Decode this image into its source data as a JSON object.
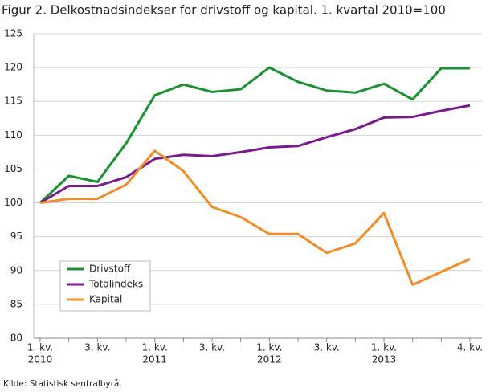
{
  "chart_data": {
    "type": "line",
    "title": "Figur 2. Delkostnadsindekser for drivstoff og kapital. 1. kvartal 2010=100",
    "source": "Kilde: Statistisk sentralbyrå.",
    "categories": [
      "1. kv.",
      null,
      "3. kv.",
      null,
      "1. kv.",
      null,
      "3. kv.",
      null,
      "1. kv.",
      null,
      "3. kv.",
      null,
      "1. kv.",
      null,
      null,
      "4. kv."
    ],
    "category_years": [
      "2010",
      null,
      null,
      null,
      "2011",
      null,
      null,
      null,
      "2012",
      null,
      null,
      null,
      "2013",
      null,
      null,
      null
    ],
    "series": [
      {
        "name": "Drivstoff",
        "color": "#1a9231",
        "values": [
          100,
          104.0,
          103.1,
          108.8,
          115.9,
          117.5,
          116.4,
          116.8,
          120.0,
          117.9,
          116.6,
          116.3,
          117.6,
          115.3,
          119.9,
          119.9
        ]
      },
      {
        "name": "Totalindeks",
        "color": "#7b1a8f",
        "values": [
          100,
          102.5,
          102.5,
          103.8,
          106.5,
          107.1,
          106.9,
          107.5,
          108.2,
          108.4,
          109.7,
          110.9,
          112.6,
          112.7,
          113.6,
          114.4
        ]
      },
      {
        "name": "Kapital",
        "color": "#f28c28",
        "values": [
          100,
          100.6,
          100.6,
          102.7,
          107.7,
          104.7,
          99.4,
          97.9,
          95.4,
          95.4,
          92.6,
          94.0,
          98.5,
          87.9,
          89.8,
          91.7
        ]
      }
    ],
    "ylim": [
      80,
      125
    ],
    "yticks": [
      80,
      85,
      90,
      95,
      100,
      105,
      110,
      115,
      120,
      125
    ],
    "grid": true,
    "legend": "lower left"
  }
}
